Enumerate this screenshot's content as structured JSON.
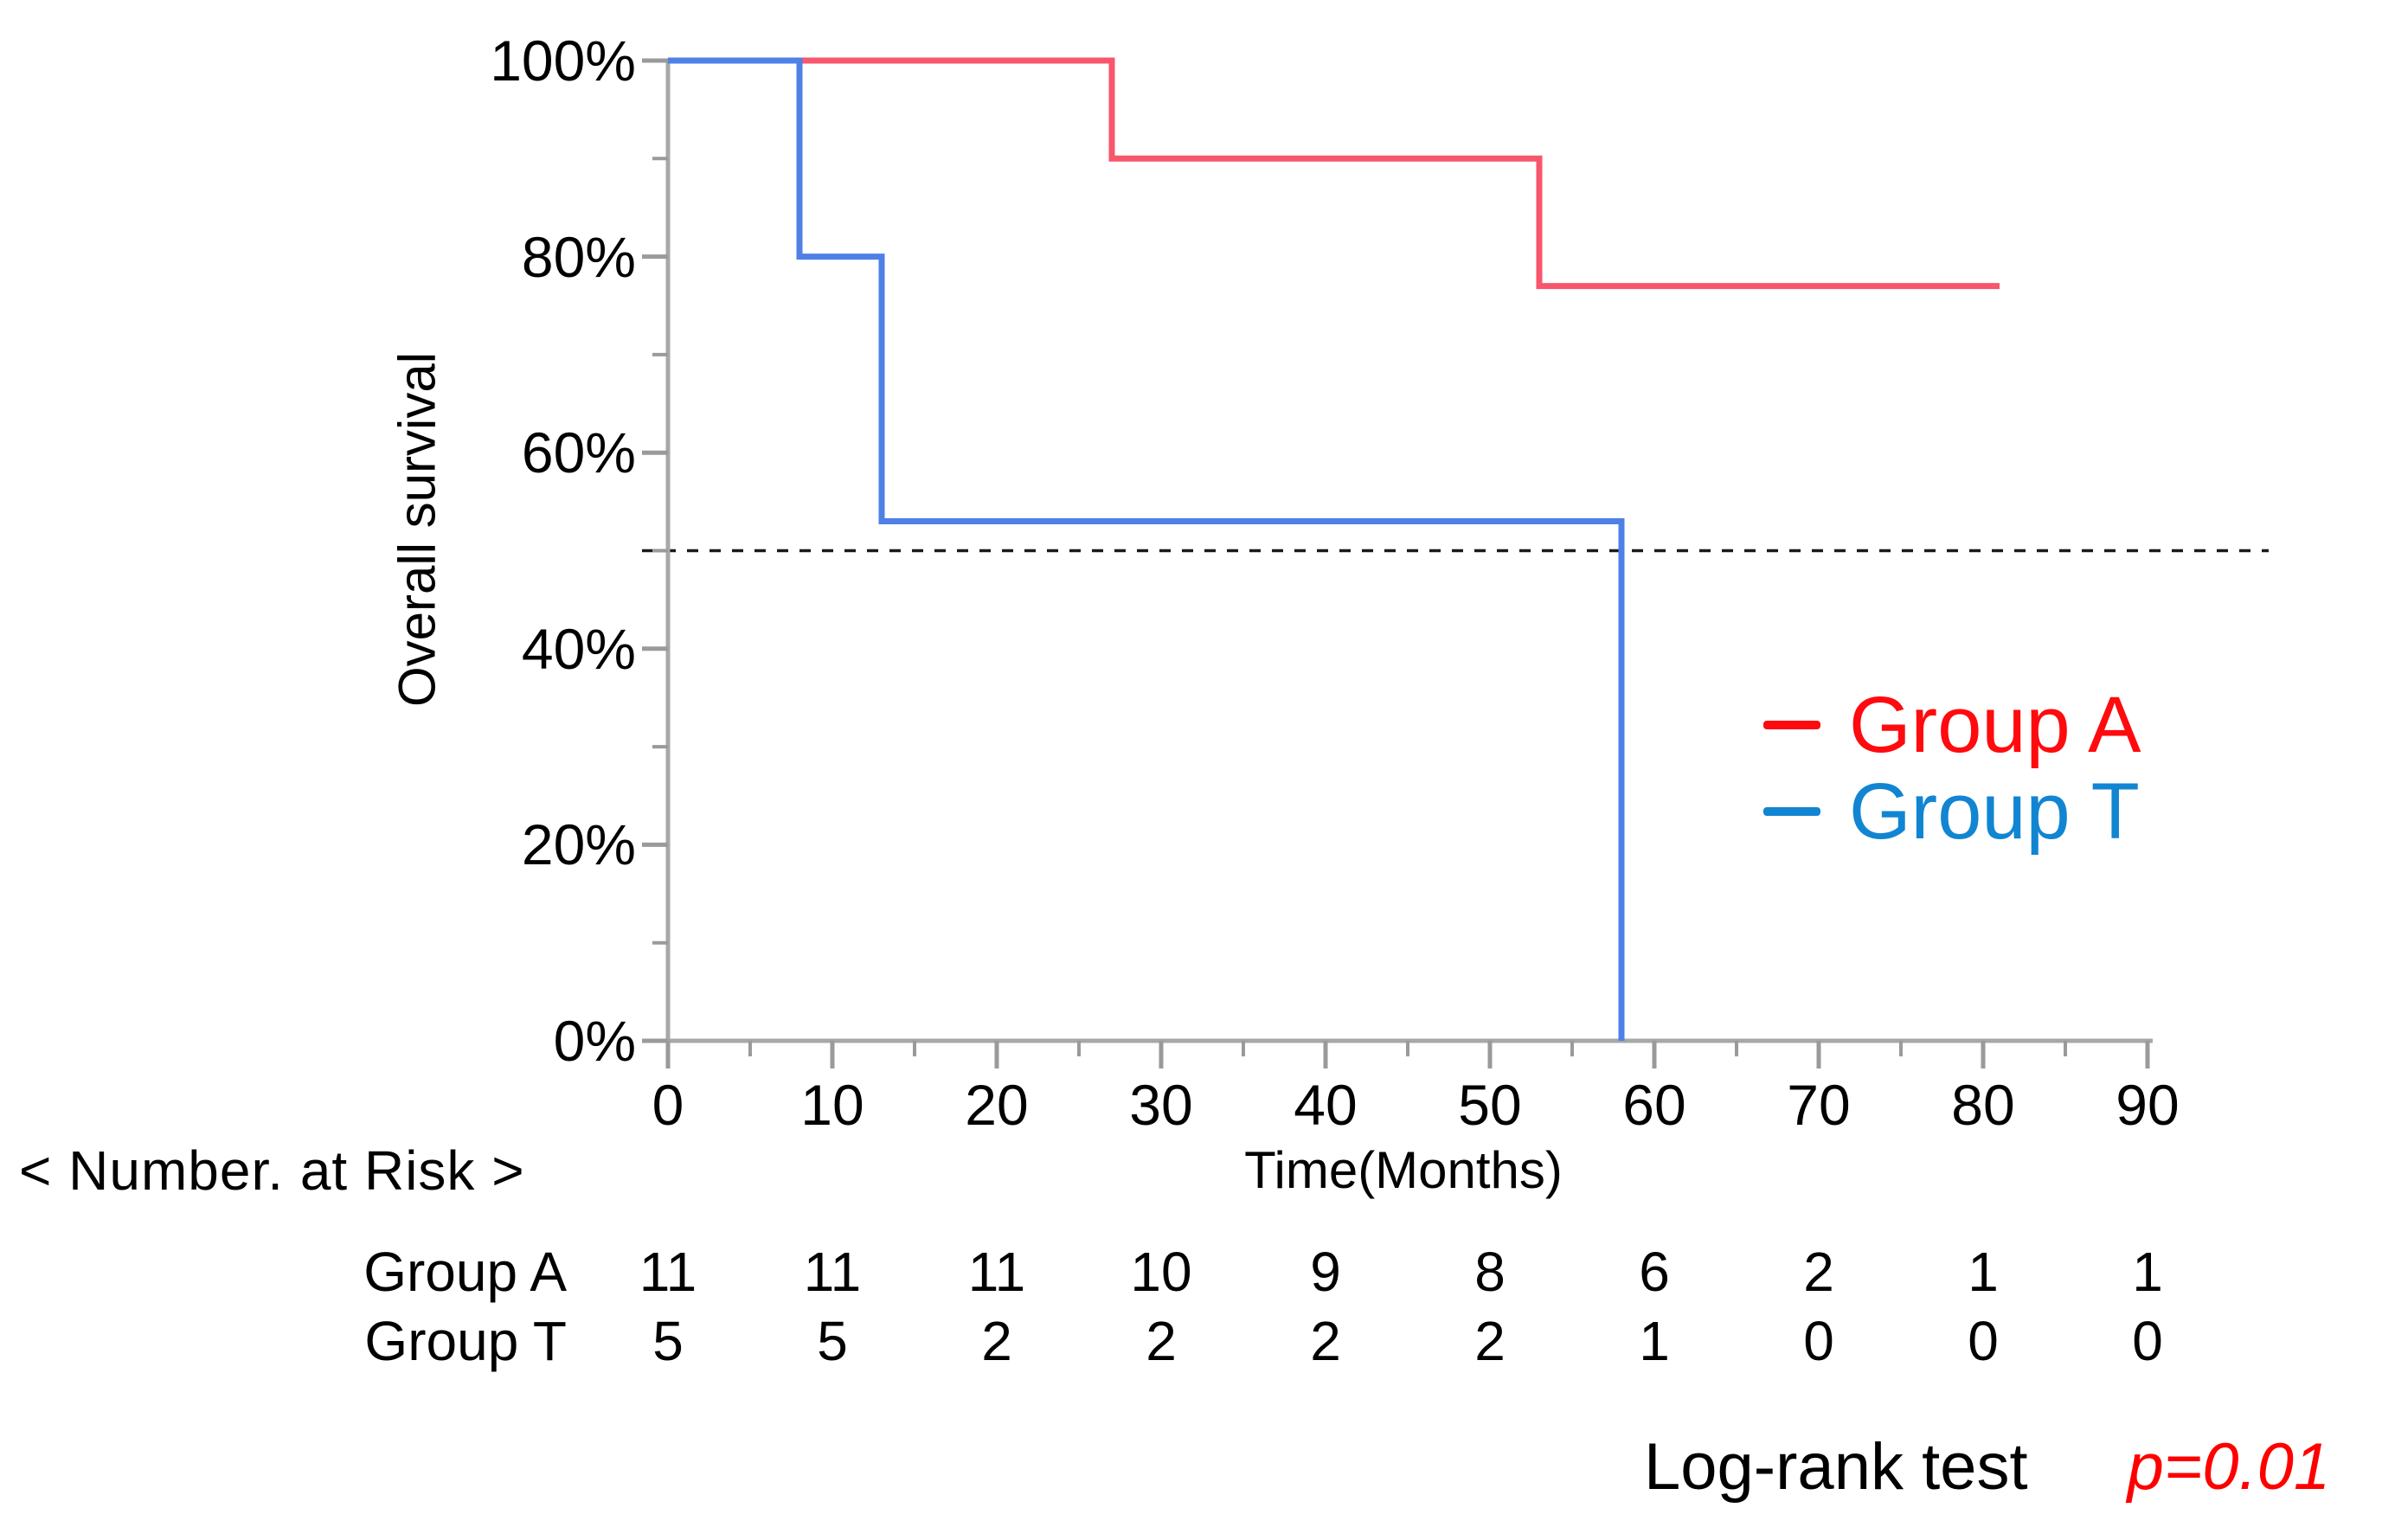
{
  "chart_data": {
    "type": "line",
    "subtype": "kaplan-meier-step",
    "title": "",
    "ylabel": "Overall survival",
    "xlabel": "Time(Months)",
    "xlim": [
      0,
      91
    ],
    "ylim": [
      0,
      100
    ],
    "grid": false,
    "x_ticks": [
      "0",
      "10",
      "20",
      "30",
      "40",
      "50",
      "60",
      "70",
      "80",
      "90"
    ],
    "x_minor_ticks": [
      5,
      15,
      25,
      35,
      45,
      55,
      65,
      75,
      85
    ],
    "y_ticks": [
      "100%",
      "80%",
      "60%",
      "40%",
      "20%",
      "0%"
    ],
    "y_minor_ticks": [
      10,
      30,
      50,
      70,
      90
    ],
    "reference_line": {
      "y_pct": 50,
      "style": "dashed",
      "color": "#1A1A1A"
    },
    "series": [
      {
        "name": "Group A",
        "color": "#F8566C",
        "steps": [
          [
            0,
            100
          ],
          [
            27,
            100
          ],
          [
            27,
            90
          ],
          [
            53,
            90
          ],
          [
            53,
            77
          ],
          [
            81,
            77
          ]
        ]
      },
      {
        "name": "Group T",
        "color": "#4E80E6",
        "steps": [
          [
            0,
            100
          ],
          [
            8,
            100
          ],
          [
            8,
            80
          ],
          [
            13,
            80
          ],
          [
            13,
            53
          ],
          [
            58,
            53
          ],
          [
            58,
            0
          ]
        ]
      }
    ],
    "legend": {
      "position": "right-middle",
      "items": [
        {
          "label": "Group A",
          "color": "#FF0A0E"
        },
        {
          "label": "Group T",
          "color": "#1185D2"
        }
      ]
    }
  },
  "risk_table": {
    "heading": "< Number. at Risk >",
    "times": [
      0,
      10,
      20,
      30,
      40,
      50,
      60,
      70,
      80,
      90
    ],
    "rows": [
      {
        "label": "Group A",
        "values": [
          "11",
          "11",
          "11",
          "10",
          "9",
          "8",
          "6",
          "2",
          "1",
          "1"
        ]
      },
      {
        "label": "Group T",
        "values": [
          "5",
          "5",
          "2",
          "2",
          "2",
          "2",
          "1",
          "0",
          "0",
          "0"
        ]
      }
    ]
  },
  "footer": {
    "test_label": "Log-rank test",
    "p_value": "p=0.01",
    "p_color": "#FF0000"
  }
}
